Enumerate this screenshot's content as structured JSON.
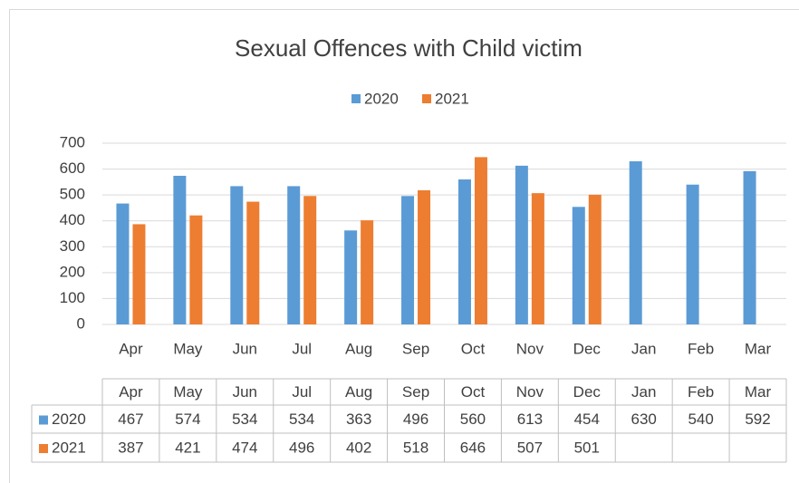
{
  "chart_data": {
    "type": "bar",
    "title": "Sexual Offences with Child victim",
    "categories": [
      "Apr",
      "May",
      "Jun",
      "Jul",
      "Aug",
      "Sep",
      "Oct",
      "Nov",
      "Dec",
      "Jan",
      "Feb",
      "Mar"
    ],
    "series": [
      {
        "name": "2020",
        "color": "#5b9bd5",
        "values": [
          467,
          574,
          534,
          534,
          363,
          496,
          560,
          613,
          454,
          630,
          540,
          592
        ]
      },
      {
        "name": "2021",
        "color": "#ed7d31",
        "values": [
          387,
          421,
          474,
          496,
          402,
          518,
          646,
          507,
          501,
          null,
          null,
          null
        ]
      }
    ],
    "ylim": [
      0,
      700
    ],
    "yticks": [
      0,
      100,
      200,
      300,
      400,
      500,
      600,
      700
    ],
    "grid": true,
    "legend": "top",
    "data_table": true
  }
}
